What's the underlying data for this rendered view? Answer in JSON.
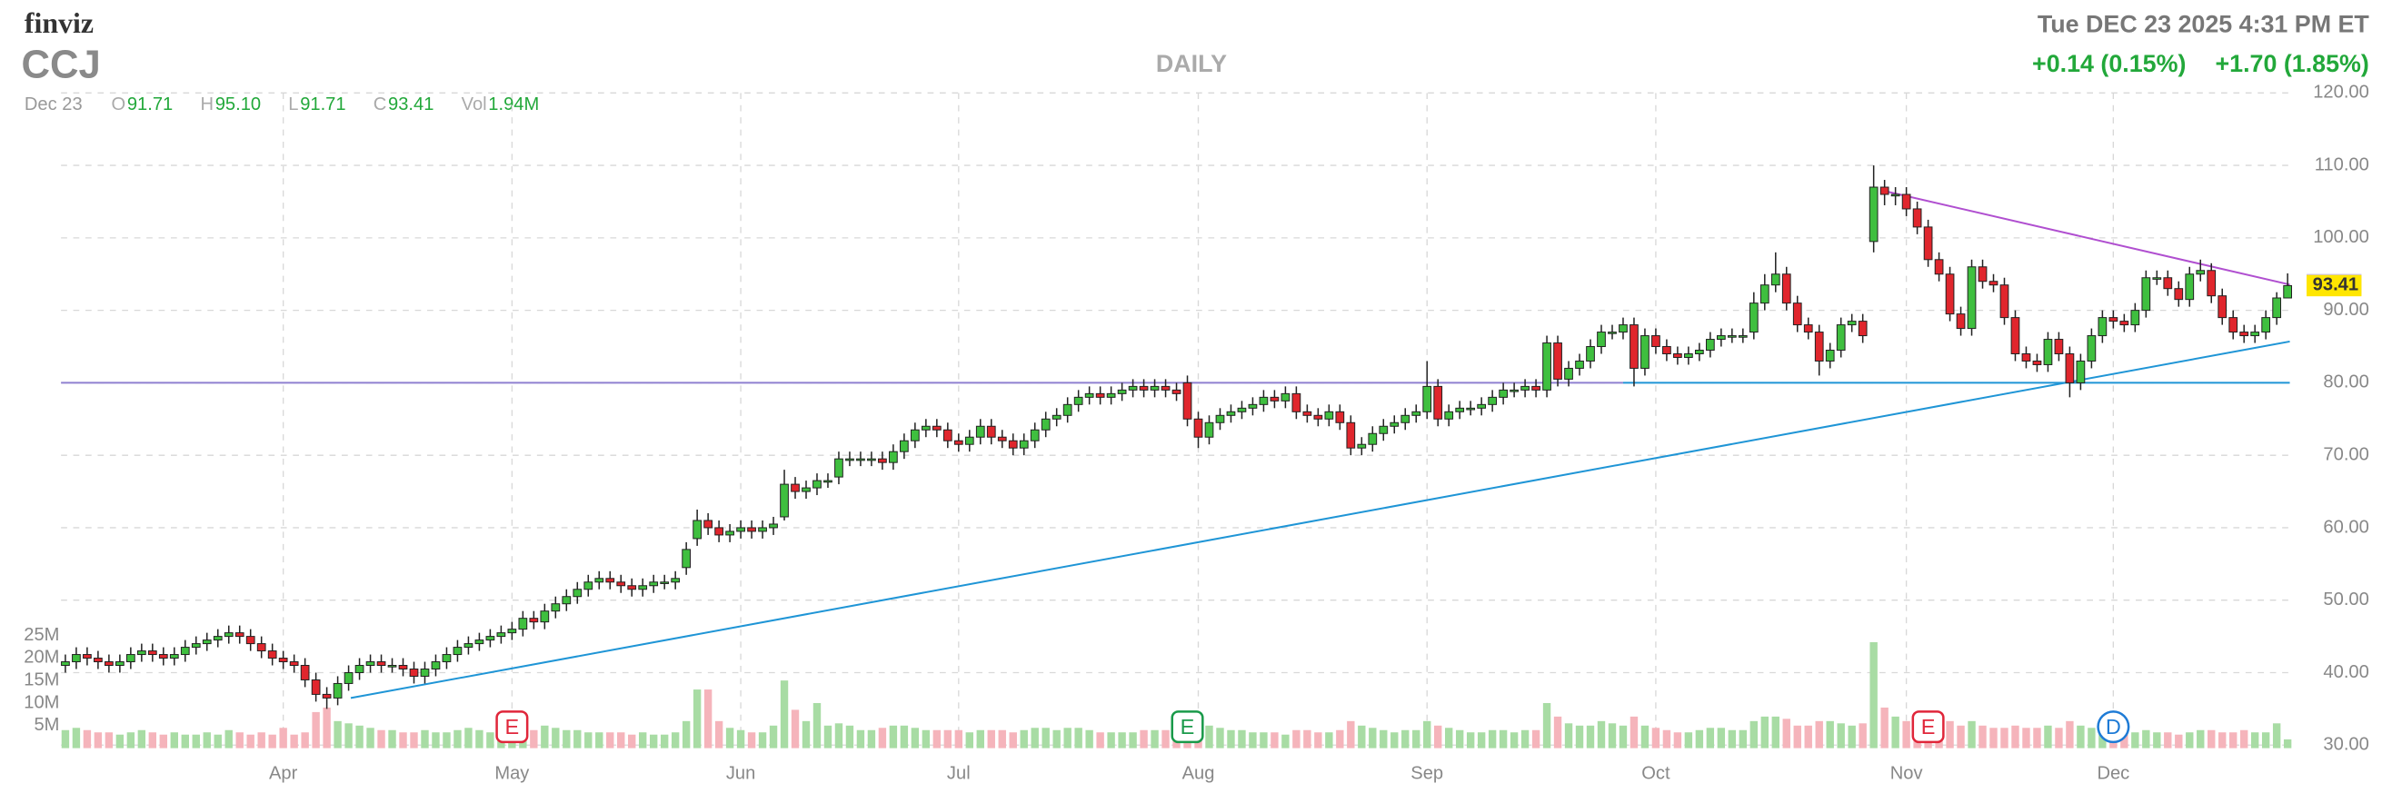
{
  "header": {
    "logo": "finviz",
    "ticker": "CCJ",
    "period": "DAILY",
    "timestamp": "Tue DEC 23 2025 4:31 PM ET",
    "change_after": "+0.14 (0.15%)",
    "change_day": "+1.70 (1.85%)",
    "date": "Dec 23",
    "ohlc_legend": [
      {
        "key": "O",
        "value": "91.71"
      },
      {
        "key": "H",
        "value": "95.10"
      },
      {
        "key": "L",
        "value": "91.71"
      },
      {
        "key": "C",
        "value": "93.41"
      },
      {
        "key": "Vol",
        "value": "1.94M"
      }
    ]
  },
  "chart_data": {
    "type": "candlestick",
    "grid": true,
    "up_color": "#3fbf3f",
    "down_color": "#e0262d",
    "volume_up_color": "#a8dca4",
    "volume_down_color": "#f5b4bb",
    "xlim": [
      -0.4,
      204.2
    ],
    "xticks": [
      {
        "value": 20,
        "label": "Apr"
      },
      {
        "value": 41,
        "label": "May"
      },
      {
        "value": 62,
        "label": "Jun"
      },
      {
        "value": 82,
        "label": "Jul"
      },
      {
        "value": 104,
        "label": "Aug"
      },
      {
        "value": 125,
        "label": "Sep"
      },
      {
        "value": 146,
        "label": "Oct"
      },
      {
        "value": 169,
        "label": "Nov"
      },
      {
        "value": 188,
        "label": "Dec"
      }
    ],
    "ylim": [
      30,
      120
    ],
    "yticks": [
      {
        "value": 30,
        "label": "30.00"
      },
      {
        "value": 40,
        "label": "40.00"
      },
      {
        "value": 50,
        "label": "50.00"
      },
      {
        "value": 60,
        "label": "60.00"
      },
      {
        "value": 70,
        "label": "70.00"
      },
      {
        "value": 80,
        "label": "80.00"
      },
      {
        "value": 90,
        "label": "90.00"
      },
      {
        "value": 100,
        "label": "100.00"
      },
      {
        "value": 110,
        "label": "110.00"
      },
      {
        "value": 120,
        "label": "120.00"
      }
    ],
    "volume_ylim": [
      0,
      25
    ],
    "volume_ticks": [
      {
        "value": 5,
        "label": "5M"
      },
      {
        "value": 10,
        "label": "10M"
      },
      {
        "value": 15,
        "label": "15M"
      },
      {
        "value": 20,
        "label": "20M"
      },
      {
        "value": 25,
        "label": "25M"
      }
    ],
    "open": [
      41,
      41.5,
      42.5,
      42,
      41.5,
      41,
      41.5,
      42.5,
      43,
      42.5,
      42,
      42.5,
      43.5,
      44,
      44.5,
      45,
      45.5,
      45,
      44,
      43,
      42,
      41.5,
      41,
      39,
      37,
      36.5,
      38.5,
      40,
      41,
      41.5,
      41,
      41,
      40.5,
      39.5,
      40.5,
      41.5,
      42.5,
      43.5,
      44,
      44.5,
      45,
      45.5,
      46,
      47.5,
      47,
      48.5,
      49.5,
      50.5,
      51.5,
      52.5,
      53,
      52.5,
      52,
      51.5,
      52,
      52.5,
      52.5,
      54.5,
      58.5,
      61,
      60,
      59,
      59.5,
      60,
      59.5,
      60,
      61.5,
      66,
      65,
      65.5,
      66.5,
      67,
      69.5,
      69.5,
      69.5,
      69.5,
      69,
      70.5,
      72,
      73.5,
      74,
      73.5,
      72,
      71.5,
      72.5,
      74,
      72.5,
      72,
      71,
      72,
      73.5,
      75,
      75.5,
      77,
      78,
      78.5,
      78,
      78.5,
      79,
      79.5,
      79,
      79.5,
      79,
      80,
      75,
      72.5,
      74.5,
      75.5,
      76,
      76.5,
      77,
      78,
      77.5,
      78.5,
      76,
      75.5,
      75,
      76,
      74.5,
      71,
      71.5,
      73,
      74,
      74.5,
      75.5,
      76,
      79.5,
      75,
      76,
      76.5,
      76.5,
      77,
      78,
      79,
      79,
      79.5,
      79,
      85.5,
      80.5,
      82,
      83,
      85,
      87,
      87,
      88,
      82,
      86.5,
      85,
      84,
      83.5,
      84,
      84.5,
      86,
      86.5,
      86.5,
      87,
      91,
      93.5,
      95,
      91,
      88,
      87,
      83,
      84.5,
      88,
      88.5,
      99.5,
      107,
      106,
      106,
      104,
      101.5,
      97,
      95,
      89.5,
      87.5,
      96,
      94,
      93.5,
      89,
      84,
      83,
      82.5,
      86,
      84,
      80,
      83,
      86.5,
      89,
      88.5,
      88,
      90,
      94.5,
      94.5,
      93,
      91.5,
      95,
      95.5,
      92,
      89,
      87,
      86.5,
      87,
      89,
      91.71
    ],
    "high": [
      42.5,
      43.5,
      43.5,
      43,
      42.5,
      42.5,
      43.5,
      44,
      44,
      43.5,
      43.5,
      44.5,
      45,
      45.5,
      46,
      46.5,
      46.5,
      46,
      45,
      44,
      43,
      42.5,
      42,
      40,
      38,
      39.5,
      41,
      42,
      42.5,
      42.5,
      42,
      42,
      41.5,
      41.5,
      42.5,
      43.5,
      44.5,
      45,
      45.5,
      46,
      46.5,
      47,
      48.5,
      48.5,
      49.5,
      50.5,
      51.5,
      52.5,
      53.5,
      54,
      54,
      53.5,
      53,
      53,
      53.5,
      53.5,
      54,
      58,
      62.5,
      62,
      61,
      60.5,
      61,
      61,
      61,
      61.5,
      68,
      67,
      66.5,
      67.5,
      67.5,
      70.5,
      70.5,
      70.5,
      70.5,
      70.5,
      71.5,
      73,
      74.5,
      75,
      75,
      74.5,
      73,
      73.5,
      75,
      75,
      73.5,
      73,
      73,
      74.5,
      76,
      76.5,
      78,
      79,
      79.5,
      79.5,
      79.5,
      80,
      80.5,
      80.5,
      80.5,
      80.5,
      80,
      81,
      76,
      75.5,
      76.5,
      77,
      77.5,
      78,
      79,
      79,
      79.5,
      79.5,
      77,
      76.5,
      77,
      77,
      75.5,
      72.5,
      74,
      75,
      75.5,
      76.5,
      77,
      83,
      80.5,
      77,
      77.5,
      77.5,
      78,
      79,
      80,
      80,
      80.5,
      80.5,
      86.5,
      86.5,
      83,
      84,
      86,
      88,
      88,
      89,
      89,
      87.5,
      87.5,
      86,
      85,
      85,
      85.5,
      87,
      87.5,
      87.5,
      87.5,
      92.5,
      95,
      98,
      96,
      92,
      89,
      88,
      85.5,
      89,
      89.5,
      89.5,
      110,
      108,
      107,
      107,
      105,
      102.5,
      98,
      96,
      90.5,
      97,
      97,
      95,
      94.5,
      90,
      85,
      84,
      87,
      87,
      85,
      84,
      87.5,
      90,
      90,
      89.5,
      91,
      95.5,
      95.5,
      95.5,
      94,
      96,
      97,
      96.5,
      93,
      90,
      88,
      88,
      90,
      92.5,
      95.1
    ],
    "low": [
      40,
      40.5,
      41,
      40.5,
      40,
      40,
      40.5,
      41.5,
      41.5,
      41,
      41,
      41.5,
      42.5,
      43,
      43.5,
      44,
      44,
      43,
      42,
      41,
      40.5,
      40,
      38,
      36,
      35,
      35.5,
      37.5,
      39,
      40,
      40,
      40,
      39.5,
      38.5,
      38.5,
      39.5,
      40.5,
      41.5,
      42.5,
      43,
      43.5,
      44,
      44.5,
      45,
      46,
      46,
      47.5,
      48.5,
      49.5,
      50.5,
      51.5,
      51.5,
      51,
      50.5,
      50.5,
      51,
      51.5,
      51.5,
      53.5,
      57.5,
      59,
      58,
      58,
      58.5,
      58.5,
      58.5,
      59,
      61,
      64,
      64,
      64.5,
      65.5,
      66,
      68.5,
      68.5,
      68.5,
      68,
      68,
      69.5,
      71,
      72.5,
      72.5,
      71,
      70.5,
      70.5,
      71.5,
      71.5,
      71,
      70,
      70,
      71,
      72.5,
      74,
      74.5,
      76,
      77,
      77,
      77,
      77.5,
      78,
      78,
      78,
      78,
      77.5,
      74,
      71,
      71.5,
      73.5,
      74.5,
      75,
      75.5,
      76,
      76.5,
      76.5,
      75,
      74.5,
      74,
      74,
      73.5,
      70,
      70,
      70.5,
      72,
      73,
      73.5,
      74.5,
      75,
      74,
      74,
      75,
      75.5,
      75.5,
      76,
      77,
      78,
      78,
      78,
      78,
      79.5,
      79.5,
      81,
      82,
      84,
      86,
      86,
      79.5,
      81,
      84,
      83,
      82.5,
      82.5,
      83,
      83.5,
      85,
      85.5,
      85.5,
      86,
      90,
      92.5,
      90,
      87,
      86,
      81,
      82,
      83.5,
      87,
      85.5,
      98,
      104.5,
      104.5,
      103,
      100.5,
      96,
      94,
      88.5,
      86.5,
      86.5,
      93,
      92.5,
      88,
      83,
      82,
      81.5,
      81.5,
      83,
      78,
      79,
      82,
      85.5,
      87.5,
      87,
      87,
      89,
      93.5,
      92,
      90.5,
      90.5,
      94,
      91,
      88,
      86,
      85.5,
      85.5,
      86,
      88,
      91.71
    ],
    "close": [
      41.5,
      42.5,
      42,
      41.5,
      41,
      41.5,
      42.5,
      43,
      42.5,
      42,
      42.5,
      43.5,
      44,
      44.5,
      45,
      45.5,
      45,
      44,
      43,
      42,
      41.5,
      41,
      39,
      37,
      36.5,
      38.5,
      40,
      41,
      41.5,
      41,
      41,
      40.5,
      39.5,
      40.5,
      41.5,
      42.5,
      43.5,
      44,
      44.5,
      45,
      45.5,
      46,
      47.5,
      47,
      48.5,
      49.5,
      50.5,
      51.5,
      52.5,
      53,
      52.5,
      52,
      51.5,
      52,
      52.5,
      52.5,
      53,
      57,
      61,
      60,
      59,
      59.5,
      60,
      59.5,
      60,
      60.5,
      66,
      65,
      65.5,
      66.5,
      66.5,
      69.5,
      69.5,
      69.5,
      69.5,
      69,
      70.5,
      72,
      73.5,
      74,
      73.5,
      72,
      71.5,
      72.5,
      74,
      72.5,
      72,
      71,
      72,
      73.5,
      75,
      75.5,
      77,
      78,
      78.5,
      78,
      78.5,
      79,
      79.5,
      79,
      79.5,
      79,
      78.5,
      75,
      72.5,
      74.5,
      75.5,
      76,
      76.5,
      77,
      78,
      77.5,
      78.5,
      76,
      75.5,
      75,
      76,
      74.5,
      71,
      71.5,
      73,
      74,
      74.5,
      75.5,
      76,
      79.5,
      75,
      76,
      76.5,
      76.5,
      77,
      78,
      79,
      79,
      79.5,
      79,
      85.5,
      80.5,
      82,
      83,
      85,
      87,
      87,
      88,
      82,
      86.5,
      85,
      84,
      83.5,
      84,
      84.5,
      86,
      86.5,
      86.5,
      86.5,
      91,
      93.5,
      95,
      91,
      88,
      87,
      83,
      84.5,
      88,
      88.5,
      86.5,
      107,
      106,
      106,
      104,
      101.5,
      97,
      95,
      89.5,
      87.5,
      96,
      94,
      93.5,
      89,
      84,
      83,
      82.5,
      86,
      84,
      80,
      83,
      86.5,
      89,
      88.5,
      88,
      90,
      94.5,
      94.5,
      93,
      91.5,
      95,
      95.5,
      92,
      89,
      87,
      86.5,
      87,
      89,
      91.71,
      93.41
    ],
    "volume": [
      4,
      4.5,
      4,
      3.5,
      3.5,
      3,
      3.5,
      4,
      3.5,
      3,
      3.5,
      3,
      3,
      3.5,
      3,
      4,
      3.5,
      3,
      3.5,
      3,
      4.5,
      3,
      3.5,
      8,
      9,
      6,
      5.5,
      5,
      4.5,
      4,
      4,
      3.5,
      3.5,
      4,
      3.5,
      3.5,
      4,
      4.5,
      4,
      3.5,
      5,
      4,
      4.5,
      4,
      5,
      4.5,
      4,
      4,
      3.5,
      3.5,
      3.5,
      3.5,
      3,
      3.5,
      3,
      3,
      3.5,
      6,
      13,
      13,
      6,
      4.5,
      4,
      3.5,
      3.5,
      5,
      15,
      8.5,
      6,
      10,
      5,
      5.5,
      5,
      4,
      4,
      4.5,
      5,
      5,
      4.5,
      4,
      4,
      4,
      4,
      3.5,
      4,
      4,
      4,
      3.5,
      4,
      4.5,
      4.5,
      4,
      4.5,
      4.5,
      4,
      3.5,
      3.5,
      3.5,
      3.5,
      4,
      4,
      4,
      3.5,
      7,
      6,
      5,
      4.5,
      4,
      4,
      3.5,
      3.5,
      3.5,
      3,
      4,
      4,
      3.5,
      3.5,
      4,
      6,
      5,
      4.5,
      4,
      3.5,
      4,
      4,
      6,
      5,
      4.5,
      4,
      3.5,
      3.5,
      4,
      4,
      3.5,
      4,
      4,
      10,
      7,
      5.5,
      5,
      5,
      6,
      5.5,
      5,
      7,
      5,
      4.5,
      4,
      3.5,
      3.5,
      4,
      4.5,
      4.5,
      4,
      4,
      6,
      7,
      7,
      6.5,
      5,
      5,
      6,
      6,
      5.5,
      5,
      5.5,
      23.5,
      9,
      7,
      6,
      6,
      5.5,
      5.5,
      6,
      5,
      6,
      5,
      4.5,
      4.5,
      5,
      4.5,
      4.5,
      5,
      4.5,
      6,
      5,
      4.5,
      4,
      3.5,
      3.5,
      3.5,
      4,
      3.5,
      3.5,
      3,
      3.5,
      4,
      4,
      3.5,
      3.5,
      4,
      3.5,
      3.5,
      5.5,
      1.94
    ],
    "events": [
      {
        "index": 41,
        "label": "E",
        "color": "#e0263a",
        "shape": "square"
      },
      {
        "index": 103,
        "label": "E",
        "color": "#1a9a4a",
        "shape": "square"
      },
      {
        "index": 171,
        "label": "E",
        "color": "#e0263a",
        "shape": "square"
      },
      {
        "index": 188,
        "label": "D",
        "color": "#1e7bd6",
        "shape": "circle"
      }
    ],
    "lines": [
      {
        "color": "#b04fd0",
        "points": [
          [
            166.9,
            106.5
          ],
          [
            204.2,
            93.55
          ]
        ]
      },
      {
        "color": "#1f95d6",
        "points": [
          [
            26.2,
            36.5
          ],
          [
            204.2,
            85.7
          ]
        ]
      },
      {
        "color": "#8f80d0",
        "points": [
          [
            -0.4,
            80
          ],
          [
            143,
            80
          ]
        ]
      },
      {
        "color": "#1f95d6",
        "points": [
          [
            143,
            80
          ],
          [
            204.2,
            80
          ]
        ]
      }
    ],
    "price_tags": [
      {
        "value": 93.55,
        "color": "#cbc0f5"
      },
      {
        "value": 93.41,
        "color": "#ffe600"
      }
    ]
  }
}
